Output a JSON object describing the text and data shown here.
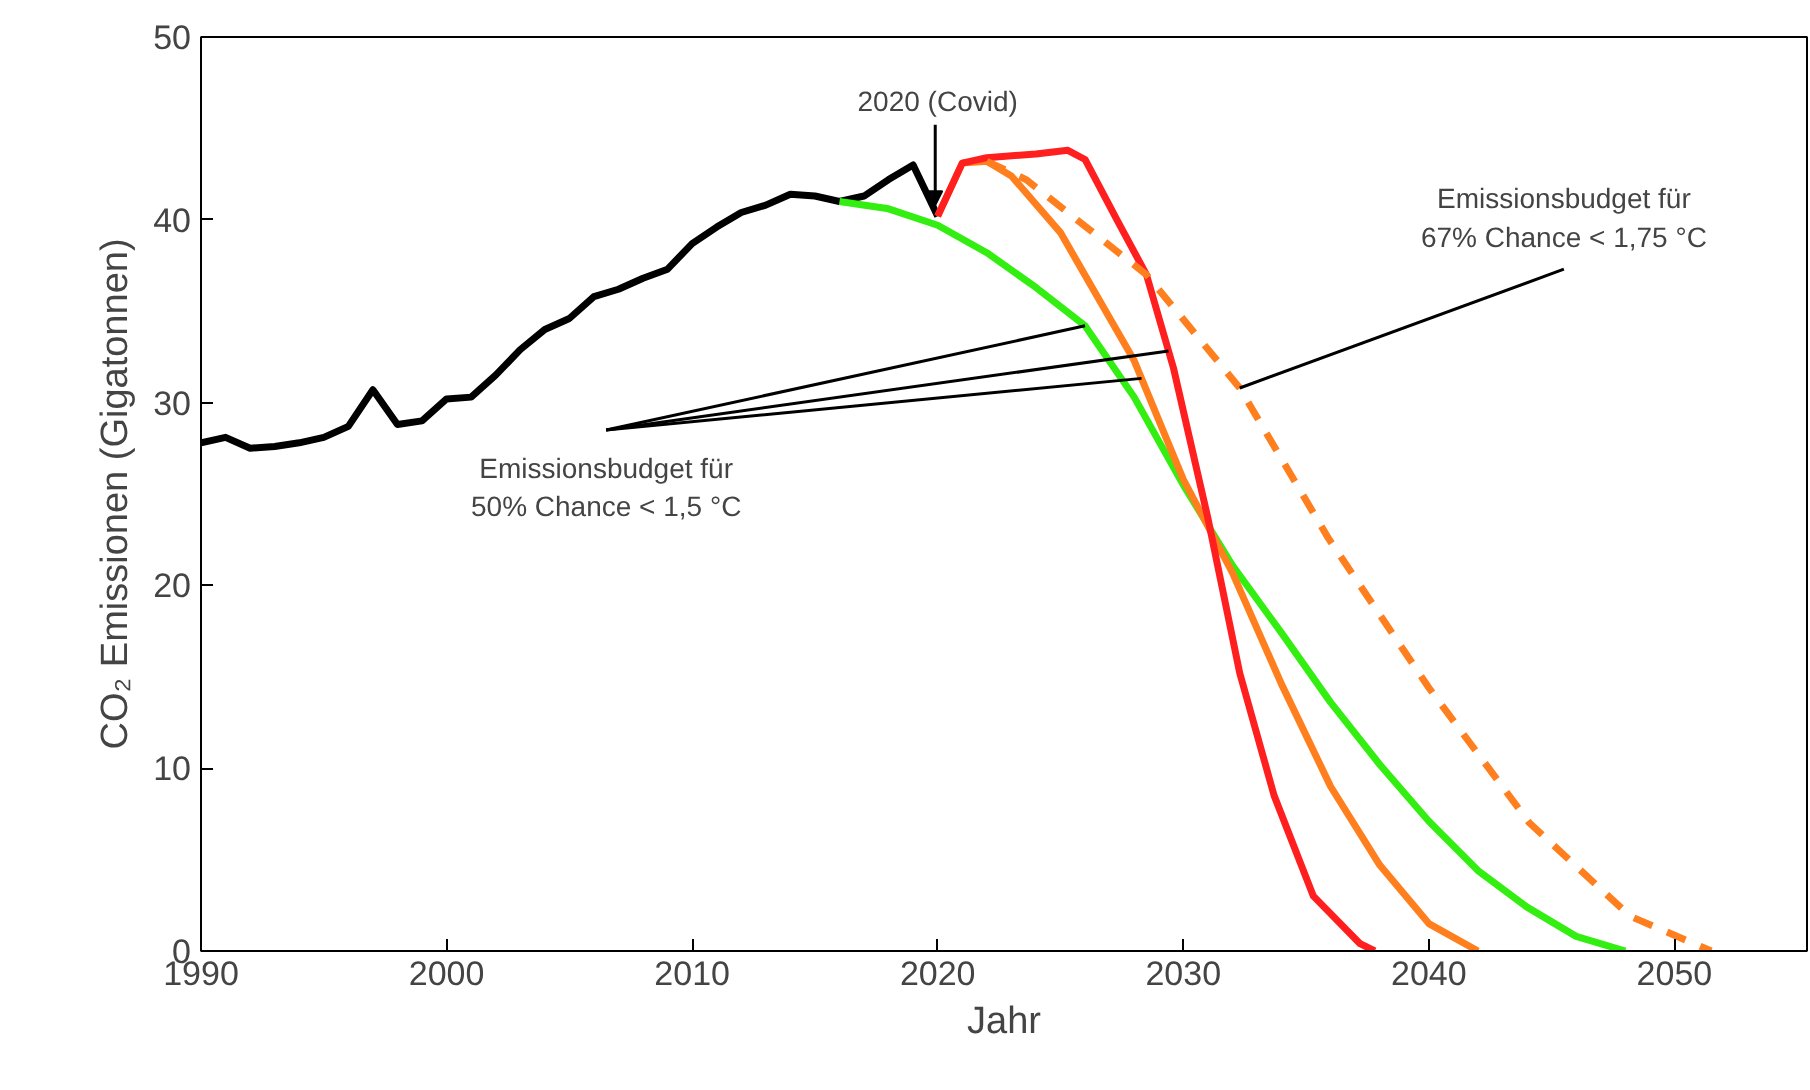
{
  "chart_data": {
    "type": "line",
    "xlabel": "Jahr",
    "ylabel": "CO₂ Emissionen (Gigatonnen)",
    "xlim": [
      1990,
      2055.4
    ],
    "ylim": [
      0,
      50
    ],
    "xticks": [
      1990,
      2000,
      2010,
      2020,
      2030,
      2040,
      2050
    ],
    "yticks": [
      0,
      10,
      20,
      30,
      40,
      50
    ],
    "grid": false,
    "marker": "none",
    "series": [
      {
        "color": "#000000",
        "line_style": "solid",
        "x": [
          1990,
          1991,
          1992,
          1993,
          1994,
          1995,
          1996,
          1997,
          1998,
          1999,
          2000,
          2001,
          2002,
          2003,
          2004,
          2005,
          2006,
          2007,
          2008,
          2009,
          2010,
          2011,
          2012,
          2013,
          2014,
          2015,
          2016,
          2017,
          2018,
          2019,
          2020
        ],
        "values": [
          27.8,
          28.1,
          27.5,
          27.6,
          27.8,
          28.1,
          28.7,
          30.7,
          28.8,
          29.0,
          30.2,
          30.3,
          31.5,
          32.9,
          34.0,
          34.6,
          35.8,
          36.2,
          36.8,
          37.3,
          38.7,
          39.6,
          40.4,
          40.8,
          41.4,
          41.3,
          41.0,
          41.3,
          42.2,
          43.0,
          40.2
        ]
      },
      {
        "color": "#33ee11",
        "line_style": "solid",
        "x": [
          2016,
          2018,
          2020,
          2022,
          2024,
          2026,
          2028,
          2030,
          2032,
          2034,
          2036,
          2038,
          2040,
          2042,
          2044,
          2046,
          2048
        ],
        "values": [
          41.0,
          40.6,
          39.7,
          38.2,
          36.3,
          34.2,
          30.3,
          25.5,
          21.1,
          17.4,
          13.6,
          10.2,
          7.1,
          4.4,
          2.4,
          0.8,
          0
        ]
      },
      {
        "color": "#ff7f1e",
        "line_style": "solid",
        "x": [
          2020,
          2021,
          2022,
          2023,
          2025,
          2028,
          2030,
          2032,
          2034,
          2036,
          2038,
          2040,
          2042
        ],
        "values": [
          40.2,
          43.1,
          43.2,
          42.4,
          39.3,
          32.3,
          25.8,
          20.7,
          14.6,
          9.0,
          4.7,
          1.5,
          0
        ]
      },
      {
        "color": "#ff1f1f",
        "line_style": "solid",
        "x": [
          2020,
          2021,
          2022,
          2024,
          2025.3,
          2026,
          2027.3,
          2028.5,
          2029.6,
          2031,
          2032.3,
          2033.7,
          2035.3,
          2037.2,
          2037.8
        ],
        "values": [
          40.2,
          43.1,
          43.4,
          43.6,
          43.8,
          43.3,
          40.0,
          37.0,
          31.9,
          23.7,
          15.2,
          8.5,
          3.0,
          0.4,
          0
        ]
      },
      {
        "color": "#ff7f1e",
        "line_style": "dashed",
        "x": [
          2022,
          2023.6,
          2028.5,
          2032.3,
          2035.9,
          2040,
          2044.1,
          2048.2,
          2051.5
        ],
        "values": [
          43.2,
          42.2,
          37.0,
          30.8,
          22.6,
          14.4,
          7.0,
          1.9,
          0
        ]
      }
    ],
    "annotations": [
      {
        "text": "2020 (Covid)",
        "x": 2020,
        "y": 40.2
      },
      {
        "text": "Emissionsbudget für\n50% Chance < 1,5 °C",
        "x": 2026,
        "y": 34.2
      },
      {
        "text": "Emissionsbudget für\n67% Chance < 1,75 °C",
        "x": 2032.3,
        "y": 30.8
      }
    ]
  }
}
